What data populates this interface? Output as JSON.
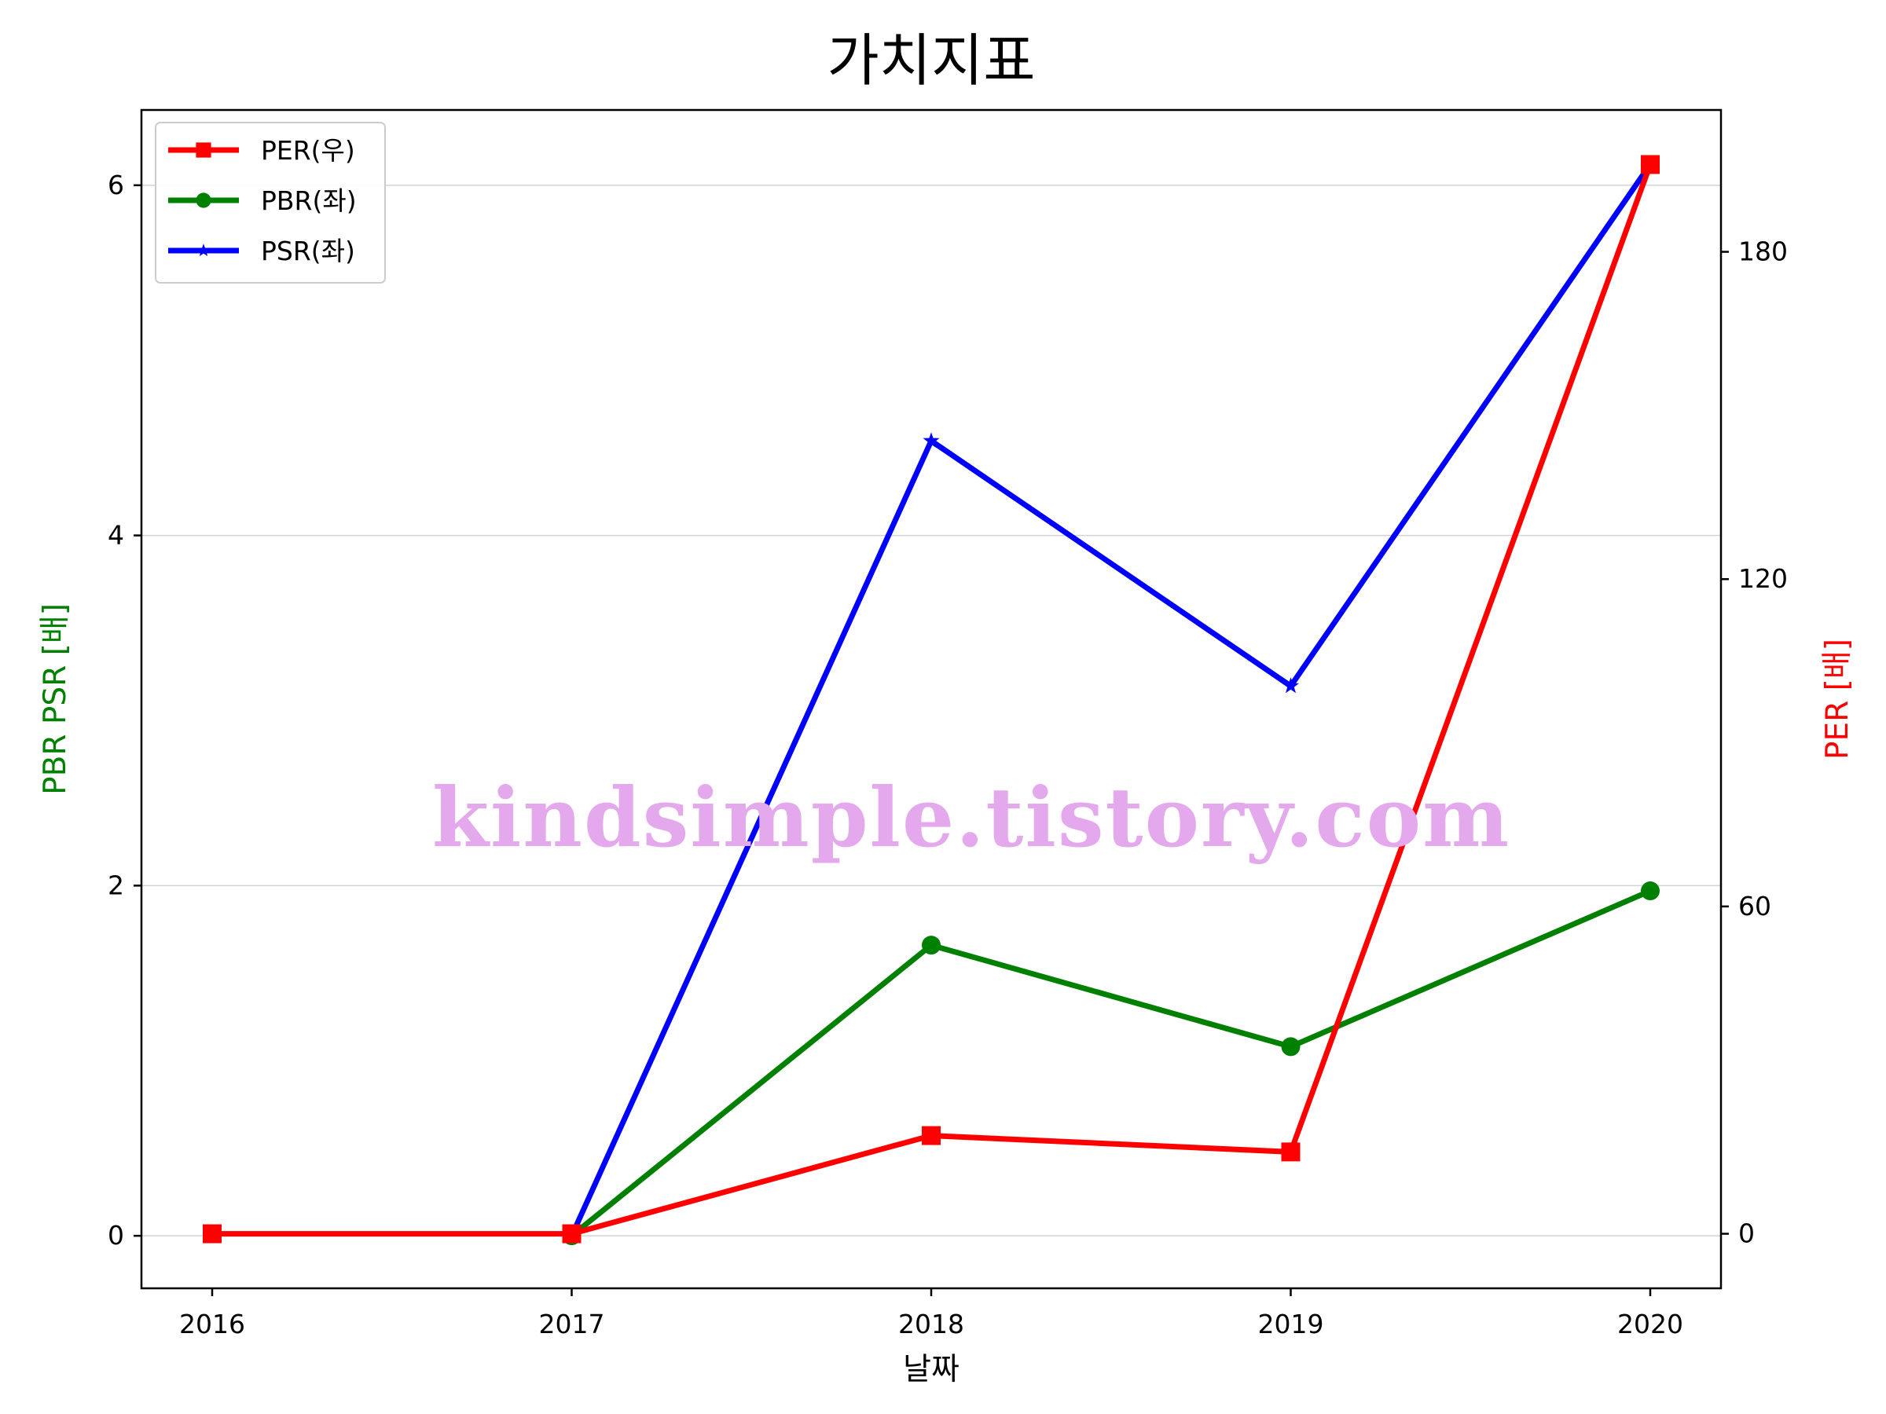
{
  "chart_data": {
    "type": "line",
    "title": "가치지표",
    "xlabel": "날짜",
    "ylabel_left": "PBR PSR [배]",
    "ylabel_right": "PER [배]",
    "categories": [
      "2016",
      "2017",
      "2018",
      "2019",
      "2020"
    ],
    "ylim_left": [
      -0.3,
      6.43
    ],
    "yticks_left": [
      "0",
      "2",
      "4",
      "6"
    ],
    "ylim_right": [
      -10,
      206
    ],
    "yticks_right": [
      "0",
      "60",
      "120",
      "180"
    ],
    "grid": "horizontal",
    "legend_position": "top-left",
    "series": [
      {
        "name": "PER(우)",
        "axis": "right",
        "color": "#ff0000",
        "marker": "square",
        "values": [
          0,
          0,
          18,
          15,
          196
        ]
      },
      {
        "name": "PBR(좌)",
        "axis": "left",
        "color": "#008000",
        "marker": "circle",
        "values": [
          null,
          0,
          1.66,
          1.08,
          1.97
        ]
      },
      {
        "name": "PSR(좌)",
        "axis": "left",
        "color": "#0000ff",
        "marker": "star",
        "values": [
          null,
          0,
          4.54,
          3.14,
          6.12
        ]
      }
    ],
    "watermark": "kindsimple.tistory.com"
  }
}
